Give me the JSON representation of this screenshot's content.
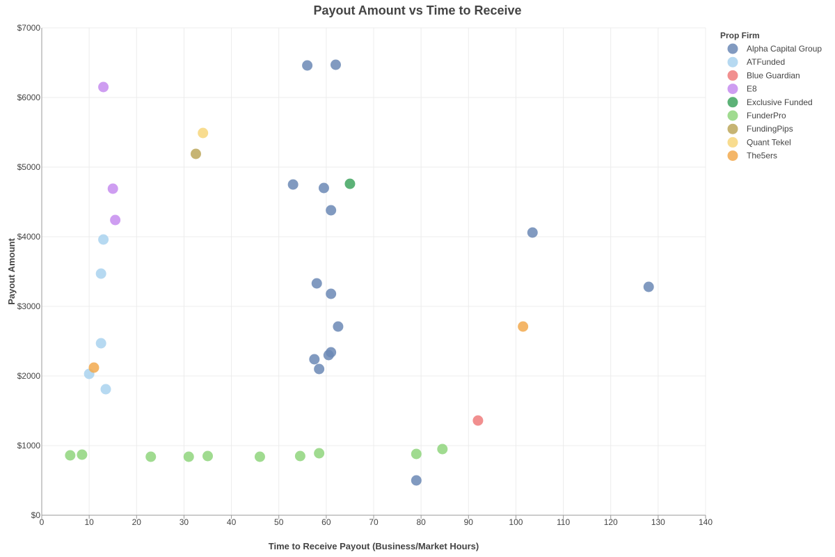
{
  "chart_data": {
    "type": "scatter",
    "title": "Payout Amount vs Time to Receive",
    "xlabel": "Time to Receive Payout (Business/Market Hours)",
    "ylabel": "Payout Amount",
    "xlim": [
      0,
      140
    ],
    "ylim": [
      0,
      7000
    ],
    "x_ticks": [
      0,
      10,
      20,
      30,
      40,
      50,
      60,
      70,
      80,
      90,
      100,
      110,
      120,
      130,
      140
    ],
    "y_ticks": [
      0,
      1000,
      2000,
      3000,
      4000,
      5000,
      6000,
      7000
    ],
    "y_tick_labels": [
      "$0",
      "$1000",
      "$2000",
      "$3000",
      "$4000",
      "$5000",
      "$6000",
      "$7000"
    ],
    "grid": true,
    "legend_title": "Prop Firm",
    "legend_position": "top-right",
    "series": [
      {
        "name": "Alpha Capital Group",
        "color": "#6b88b5",
        "points": [
          [
            56,
            6460
          ],
          [
            62,
            6470
          ],
          [
            53,
            4750
          ],
          [
            59.5,
            4700
          ],
          [
            61,
            4380
          ],
          [
            103.5,
            4060
          ],
          [
            128,
            3280
          ],
          [
            58,
            3330
          ],
          [
            61,
            3180
          ],
          [
            62.5,
            2710
          ],
          [
            61,
            2340
          ],
          [
            60.5,
            2300
          ],
          [
            57.5,
            2240
          ],
          [
            58.5,
            2100
          ],
          [
            79,
            500
          ]
        ]
      },
      {
        "name": "ATFunded",
        "color": "#a9d2ee",
        "points": [
          [
            13,
            3960
          ],
          [
            12.5,
            3470
          ],
          [
            12.5,
            2470
          ],
          [
            10,
            2030
          ],
          [
            13.5,
            1810
          ]
        ]
      },
      {
        "name": "Blue Guardian",
        "color": "#ee7b7b",
        "points": [
          [
            92,
            1360
          ]
        ]
      },
      {
        "name": "E8",
        "color": "#c58cee",
        "points": [
          [
            13,
            6150
          ],
          [
            15,
            4690
          ],
          [
            15.5,
            4240
          ]
        ]
      },
      {
        "name": "Exclusive Funded",
        "color": "#3fa45f",
        "points": [
          [
            65,
            4760
          ]
        ]
      },
      {
        "name": "FunderPro",
        "color": "#8fd57c",
        "points": [
          [
            6,
            860
          ],
          [
            8.5,
            870
          ],
          [
            23,
            840
          ],
          [
            31,
            840
          ],
          [
            35,
            850
          ],
          [
            46,
            840
          ],
          [
            54.5,
            850
          ],
          [
            58.5,
            890
          ],
          [
            79,
            880
          ],
          [
            84.5,
            950
          ]
        ]
      },
      {
        "name": "FundingPips",
        "color": "#bca75a",
        "points": [
          [
            32.5,
            5190
          ]
        ]
      },
      {
        "name": "Quant Tekel",
        "color": "#f7d67b",
        "points": [
          [
            34,
            5490
          ]
        ]
      },
      {
        "name": "The5ers",
        "color": "#f2a94e",
        "points": [
          [
            11,
            2120
          ],
          [
            101.5,
            2710
          ]
        ]
      }
    ]
  }
}
